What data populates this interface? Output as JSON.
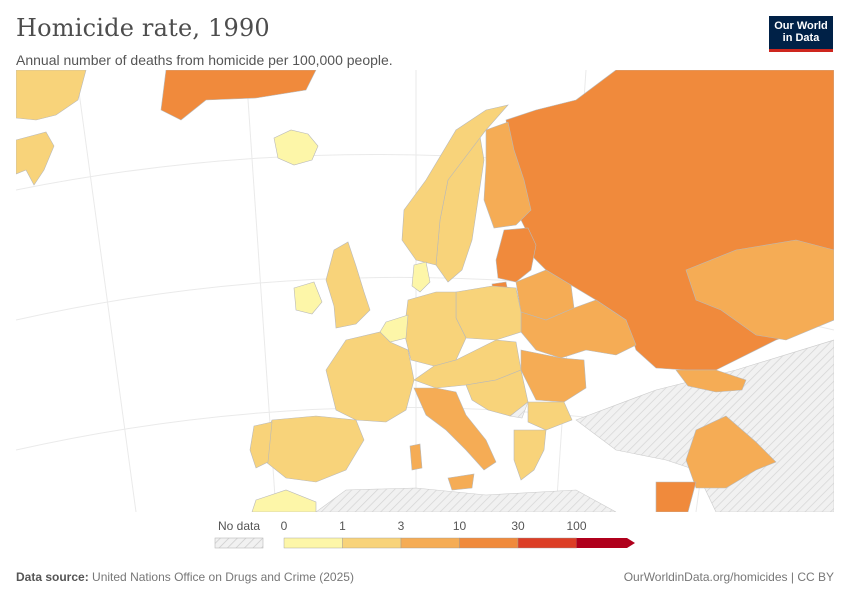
{
  "header": {
    "title": "Homicide rate, 1990",
    "subtitle": "Annual number of deaths from homicide per 100,000 people."
  },
  "logo": {
    "line1": "Our World",
    "line2": "in Data"
  },
  "legend": {
    "no_data_label": "No data",
    "ticks": [
      "0",
      "1",
      "3",
      "10",
      "30",
      "100"
    ],
    "colors": [
      "#fdf6a8",
      "#f8d37a",
      "#f5ac55",
      "#f08a3c",
      "#dc3e26",
      "#b0001c"
    ]
  },
  "map_colors": {
    "sea": "#ffffff",
    "land_no_data": "#e6e6e6",
    "border": "#999999",
    "graticule": "#e8e8e8"
  },
  "footer": {
    "source_label": "Data source:",
    "source_text": "United Nations Office on Drugs and Crime (2025)",
    "link_text": "OurWorldinData.org/homicides | CC BY"
  }
}
